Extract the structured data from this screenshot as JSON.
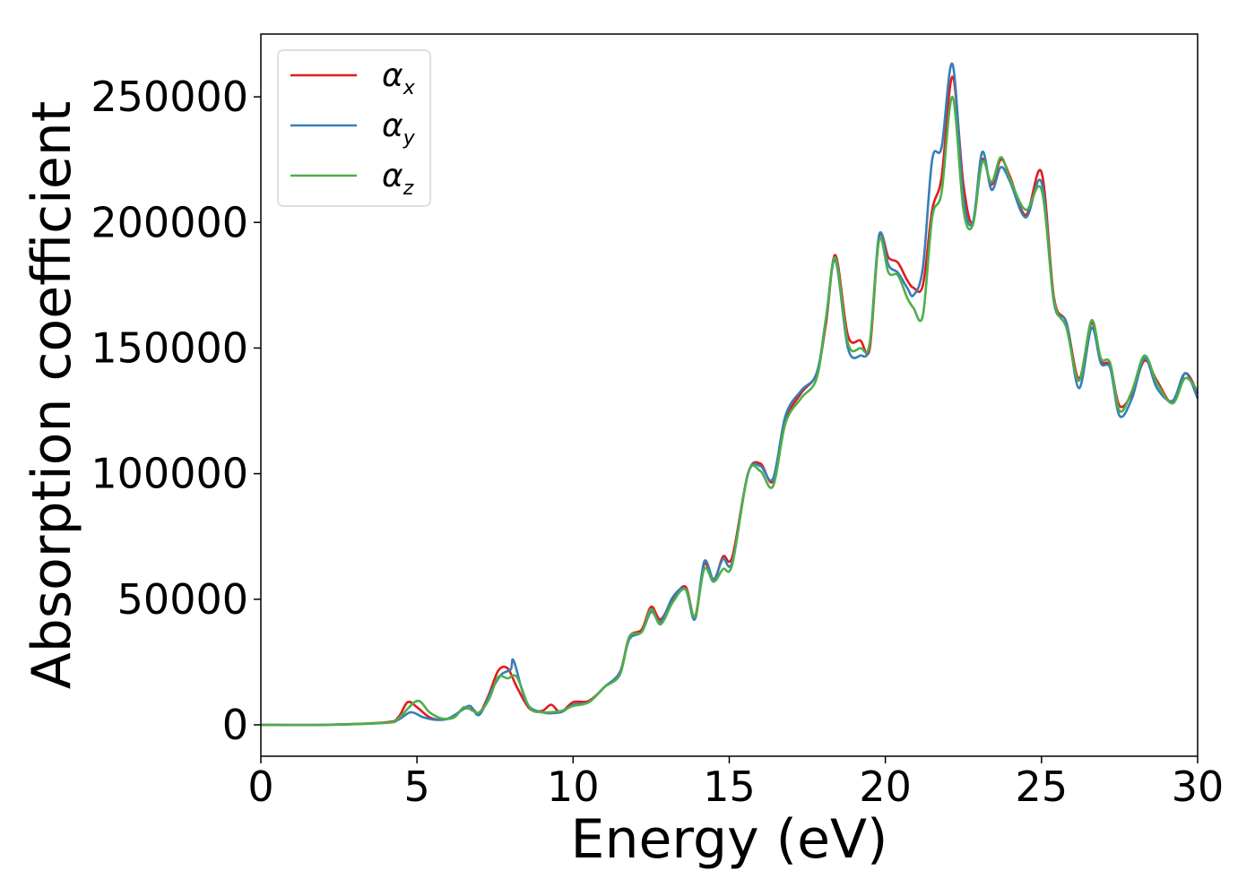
{
  "chart_data": {
    "type": "line",
    "title": "",
    "xlabel": "Energy (eV)",
    "ylabel": "Absorption coefficient",
    "xlim": [
      0,
      30
    ],
    "ylim": [
      -12500,
      275000
    ],
    "x_ticks": [
      0,
      5,
      10,
      15,
      20,
      25,
      30
    ],
    "y_ticks": [
      0,
      50000,
      100000,
      150000,
      200000,
      250000
    ],
    "grid": false,
    "legend_position": "upper-left",
    "series": [
      {
        "name": "α",
        "subscript": "x",
        "color": "#e41a1c",
        "points": [
          [
            0,
            0
          ],
          [
            2,
            0
          ],
          [
            4,
            1000
          ],
          [
            4.4,
            3000
          ],
          [
            4.7,
            9000
          ],
          [
            5.0,
            7000
          ],
          [
            5.4,
            3000
          ],
          [
            5.8,
            2000
          ],
          [
            6.2,
            3500
          ],
          [
            6.5,
            6500
          ],
          [
            6.8,
            6000
          ],
          [
            7.0,
            4500
          ],
          [
            7.3,
            12000
          ],
          [
            7.6,
            21500
          ],
          [
            7.9,
            22500
          ],
          [
            8.2,
            15000
          ],
          [
            8.6,
            6500
          ],
          [
            9.0,
            5500
          ],
          [
            9.3,
            8000
          ],
          [
            9.6,
            5000
          ],
          [
            10.0,
            9000
          ],
          [
            10.5,
            9500
          ],
          [
            11.0,
            15000
          ],
          [
            11.5,
            21000
          ],
          [
            11.8,
            35000
          ],
          [
            12.2,
            38000
          ],
          [
            12.5,
            47000
          ],
          [
            12.8,
            42000
          ],
          [
            13.2,
            50000
          ],
          [
            13.6,
            55000
          ],
          [
            13.9,
            43000
          ],
          [
            14.2,
            64000
          ],
          [
            14.5,
            57000
          ],
          [
            14.8,
            67000
          ],
          [
            15.1,
            67000
          ],
          [
            15.6,
            100000
          ],
          [
            16.0,
            104000
          ],
          [
            16.4,
            97000
          ],
          [
            16.8,
            121000
          ],
          [
            17.3,
            132000
          ],
          [
            17.8,
            140000
          ],
          [
            18.1,
            160000
          ],
          [
            18.4,
            187000
          ],
          [
            18.8,
            155000
          ],
          [
            19.2,
            153000
          ],
          [
            19.5,
            150000
          ],
          [
            19.8,
            194000
          ],
          [
            20.1,
            186000
          ],
          [
            20.4,
            184000
          ],
          [
            20.7,
            177000
          ],
          [
            20.9,
            174000
          ],
          [
            21.2,
            175000
          ],
          [
            21.5,
            205000
          ],
          [
            21.8,
            218000
          ],
          [
            22.15,
            258000
          ],
          [
            22.5,
            215000
          ],
          [
            22.8,
            200000
          ],
          [
            23.1,
            225000
          ],
          [
            23.4,
            215000
          ],
          [
            23.7,
            225000
          ],
          [
            24.0,
            218000
          ],
          [
            24.5,
            203000
          ],
          [
            25.0,
            220000
          ],
          [
            25.4,
            170000
          ],
          [
            25.8,
            160000
          ],
          [
            26.2,
            138000
          ],
          [
            26.6,
            160000
          ],
          [
            26.9,
            145000
          ],
          [
            27.2,
            143000
          ],
          [
            27.5,
            127000
          ],
          [
            27.9,
            132000
          ],
          [
            28.3,
            145000
          ],
          [
            28.7,
            137000
          ],
          [
            29.2,
            128000
          ],
          [
            29.6,
            140000
          ],
          [
            30,
            132000
          ]
        ]
      },
      {
        "name": "α",
        "subscript": "y",
        "color": "#377eb8",
        "points": [
          [
            0,
            0
          ],
          [
            2,
            0
          ],
          [
            4,
            800
          ],
          [
            4.4,
            2000
          ],
          [
            4.8,
            5000
          ],
          [
            5.2,
            3000
          ],
          [
            5.6,
            2000
          ],
          [
            6.0,
            2500
          ],
          [
            6.4,
            5500
          ],
          [
            6.7,
            7500
          ],
          [
            7.0,
            4000
          ],
          [
            7.4,
            14000
          ],
          [
            7.7,
            20000
          ],
          [
            8.0,
            22000
          ],
          [
            8.1,
            25500
          ],
          [
            8.5,
            9000
          ],
          [
            9.0,
            5000
          ],
          [
            9.6,
            5000
          ],
          [
            10.0,
            8000
          ],
          [
            10.5,
            9000
          ],
          [
            11.0,
            15000
          ],
          [
            11.5,
            21000
          ],
          [
            11.8,
            34000
          ],
          [
            12.2,
            37000
          ],
          [
            12.5,
            45000
          ],
          [
            12.8,
            41000
          ],
          [
            13.2,
            51000
          ],
          [
            13.6,
            54000
          ],
          [
            13.9,
            42000
          ],
          [
            14.2,
            65000
          ],
          [
            14.5,
            58000
          ],
          [
            14.8,
            66000
          ],
          [
            15.1,
            65000
          ],
          [
            15.6,
            100000
          ],
          [
            16.0,
            103000
          ],
          [
            16.4,
            98000
          ],
          [
            16.8,
            123000
          ],
          [
            17.3,
            133000
          ],
          [
            17.8,
            140000
          ],
          [
            18.1,
            162000
          ],
          [
            18.4,
            185000
          ],
          [
            18.8,
            150000
          ],
          [
            19.2,
            147000
          ],
          [
            19.5,
            152000
          ],
          [
            19.8,
            195000
          ],
          [
            20.1,
            183000
          ],
          [
            20.4,
            180000
          ],
          [
            20.7,
            174000
          ],
          [
            20.9,
            171000
          ],
          [
            21.2,
            182000
          ],
          [
            21.5,
            225000
          ],
          [
            21.8,
            230000
          ],
          [
            22.15,
            263000
          ],
          [
            22.5,
            210000
          ],
          [
            22.8,
            200000
          ],
          [
            23.1,
            228000
          ],
          [
            23.4,
            213000
          ],
          [
            23.7,
            222000
          ],
          [
            24.0,
            216000
          ],
          [
            24.5,
            202000
          ],
          [
            25.0,
            216000
          ],
          [
            25.4,
            168000
          ],
          [
            25.8,
            160000
          ],
          [
            26.2,
            134000
          ],
          [
            26.6,
            158000
          ],
          [
            26.9,
            144000
          ],
          [
            27.2,
            142000
          ],
          [
            27.5,
            123000
          ],
          [
            27.9,
            130000
          ],
          [
            28.3,
            146000
          ],
          [
            28.7,
            134000
          ],
          [
            29.2,
            129000
          ],
          [
            29.6,
            140000
          ],
          [
            30,
            130000
          ]
        ]
      },
      {
        "name": "α",
        "subscript": "z",
        "color": "#4daf4a",
        "points": [
          [
            0,
            0
          ],
          [
            2,
            0
          ],
          [
            4,
            800
          ],
          [
            4.4,
            2500
          ],
          [
            5.0,
            9500
          ],
          [
            5.4,
            5000
          ],
          [
            5.8,
            2500
          ],
          [
            6.2,
            3000
          ],
          [
            6.5,
            7000
          ],
          [
            6.8,
            5500
          ],
          [
            7.0,
            5000
          ],
          [
            7.3,
            10000
          ],
          [
            7.6,
            19000
          ],
          [
            7.9,
            18500
          ],
          [
            8.2,
            19000
          ],
          [
            8.6,
            7000
          ],
          [
            9.0,
            5000
          ],
          [
            9.6,
            5500
          ],
          [
            10.0,
            7500
          ],
          [
            10.5,
            9000
          ],
          [
            11.0,
            15000
          ],
          [
            11.5,
            20000
          ],
          [
            11.8,
            35000
          ],
          [
            12.2,
            37000
          ],
          [
            12.5,
            46000
          ],
          [
            12.8,
            40000
          ],
          [
            13.2,
            49000
          ],
          [
            13.6,
            54000
          ],
          [
            13.9,
            43000
          ],
          [
            14.2,
            62000
          ],
          [
            14.5,
            57000
          ],
          [
            14.8,
            62000
          ],
          [
            15.1,
            64000
          ],
          [
            15.6,
            100000
          ],
          [
            16.0,
            101000
          ],
          [
            16.4,
            95000
          ],
          [
            16.8,
            120000
          ],
          [
            17.3,
            130000
          ],
          [
            17.8,
            138000
          ],
          [
            18.1,
            162000
          ],
          [
            18.4,
            186000
          ],
          [
            18.8,
            152000
          ],
          [
            19.2,
            150000
          ],
          [
            19.5,
            152000
          ],
          [
            19.8,
            193000
          ],
          [
            20.1,
            180000
          ],
          [
            20.4,
            179000
          ],
          [
            20.7,
            170000
          ],
          [
            20.9,
            166000
          ],
          [
            21.2,
            163000
          ],
          [
            21.5,
            202000
          ],
          [
            21.8,
            212000
          ],
          [
            22.15,
            250000
          ],
          [
            22.5,
            205000
          ],
          [
            22.8,
            199000
          ],
          [
            23.1,
            224000
          ],
          [
            23.4,
            216000
          ],
          [
            23.7,
            226000
          ],
          [
            24.0,
            217000
          ],
          [
            24.5,
            205000
          ],
          [
            25.0,
            213000
          ],
          [
            25.4,
            169000
          ],
          [
            25.8,
            158000
          ],
          [
            26.2,
            137000
          ],
          [
            26.6,
            161000
          ],
          [
            26.9,
            146000
          ],
          [
            27.2,
            144000
          ],
          [
            27.5,
            125000
          ],
          [
            27.9,
            133000
          ],
          [
            28.3,
            147000
          ],
          [
            28.7,
            136000
          ],
          [
            29.2,
            128000
          ],
          [
            29.6,
            138000
          ],
          [
            30,
            133000
          ]
        ]
      }
    ]
  }
}
